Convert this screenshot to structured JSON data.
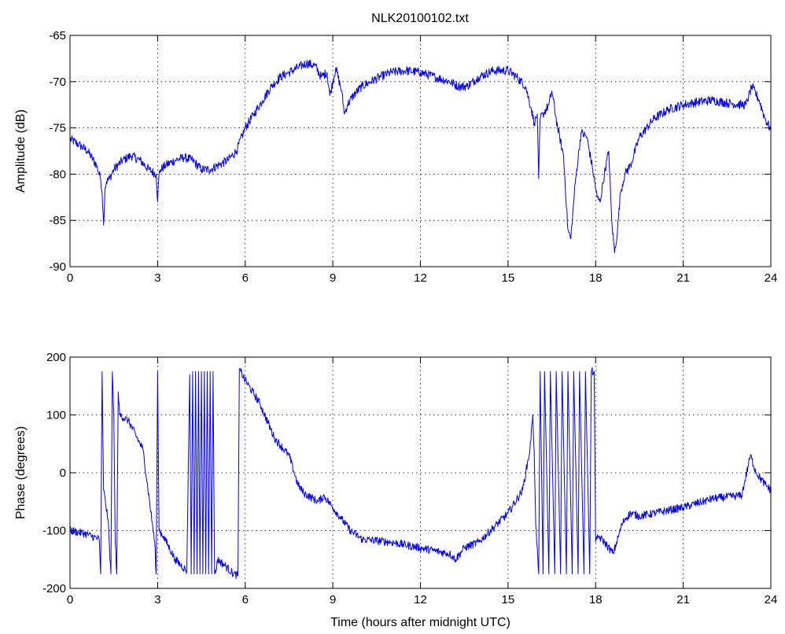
{
  "figure": {
    "title": "NLK20100102.txt",
    "series_color": "#0000ff"
  },
  "chart_data": [
    {
      "type": "line",
      "title": "NLK20100102.txt",
      "xlabel": "",
      "ylabel": "Amplitude (dB)",
      "xlim": [
        0,
        24
      ],
      "ylim": [
        -90,
        -65
      ],
      "xticks": [
        0,
        3,
        6,
        9,
        12,
        15,
        18,
        21,
        24
      ],
      "yticks": [
        -90,
        -85,
        -80,
        -75,
        -70,
        -65
      ],
      "grid": true,
      "series": [
        {
          "color": "#0000ff",
          "noise": 0.5,
          "x": [
            0,
            0.3,
            0.6,
            0.9,
            1.05,
            1.1,
            1.15,
            1.2,
            1.25,
            1.35,
            1.5,
            1.8,
            2.1,
            2.4,
            2.7,
            2.95,
            3.0,
            3.05,
            3.1,
            3.3,
            3.6,
            3.9,
            4.2,
            4.5,
            4.8,
            5.1,
            5.4,
            5.7,
            6.0,
            6.3,
            6.6,
            6.9,
            7.2,
            7.5,
            7.8,
            8.1,
            8.4,
            8.6,
            8.8,
            8.9,
            9.1,
            9.3,
            9.4,
            9.5,
            9.7,
            10.0,
            10.3,
            10.6,
            11.0,
            11.5,
            12.0,
            12.5,
            13.0,
            13.3,
            13.6,
            14.0,
            14.5,
            15.0,
            15.3,
            15.6,
            15.8,
            15.9,
            16.0,
            16.05,
            16.1,
            16.2,
            16.4,
            16.5,
            16.7,
            16.9,
            17.05,
            17.15,
            17.3,
            17.5,
            17.7,
            17.9,
            18.05,
            18.15,
            18.3,
            18.45,
            18.55,
            18.65,
            18.75,
            18.85,
            19.0,
            19.2,
            19.5,
            20.0,
            20.5,
            21.0,
            21.5,
            22.0,
            22.5,
            23.0,
            23.15,
            23.35,
            23.6,
            23.8,
            24.0
          ],
          "values": [
            -76.2,
            -76.8,
            -77.5,
            -79.0,
            -80.5,
            -82.0,
            -85.5,
            -81.5,
            -80.8,
            -80.5,
            -79.5,
            -78.5,
            -78.0,
            -78.5,
            -79.5,
            -80.0,
            -83.0,
            -80.0,
            -79.5,
            -79.0,
            -78.5,
            -78.2,
            -78.5,
            -79.5,
            -79.5,
            -79.0,
            -78.5,
            -77.5,
            -75.0,
            -73.5,
            -72.0,
            -70.5,
            -69.5,
            -69.0,
            -68.5,
            -68.0,
            -68.3,
            -69.5,
            -69.0,
            -71.5,
            -68.5,
            -71.0,
            -73.5,
            -72.5,
            -71.5,
            -70.5,
            -70.0,
            -69.5,
            -69.0,
            -68.8,
            -69.0,
            -69.5,
            -70.0,
            -70.5,
            -70.5,
            -69.5,
            -68.8,
            -68.8,
            -69.5,
            -70.5,
            -73.0,
            -74.5,
            -73.5,
            -80.5,
            -74.0,
            -73.5,
            -72.5,
            -71.0,
            -75.0,
            -78.0,
            -86.0,
            -87.0,
            -81.0,
            -75.5,
            -76.0,
            -79.5,
            -82.5,
            -83.0,
            -80.0,
            -77.5,
            -85.0,
            -88.5,
            -86.0,
            -82.0,
            -80.0,
            -79.0,
            -76.0,
            -74.0,
            -73.0,
            -72.5,
            -72.2,
            -72.0,
            -72.3,
            -72.5,
            -72.5,
            -70.5,
            -72.0,
            -74.0,
            -75.2
          ]
        }
      ]
    },
    {
      "type": "line",
      "title": "",
      "xlabel": "Time (hours after midnight UTC)",
      "ylabel": "Phase (degrees)",
      "xlim": [
        0,
        24
      ],
      "ylim": [
        -200,
        200
      ],
      "xticks": [
        0,
        3,
        6,
        9,
        12,
        15,
        18,
        21,
        24
      ],
      "yticks": [
        -200,
        -100,
        0,
        100,
        200
      ],
      "grid": true,
      "series": [
        {
          "color": "#0000ff",
          "noise": 7,
          "x": [
            0,
            0.5,
            1.0,
            1.05,
            1.1,
            1.15,
            1.3,
            1.4,
            1.45,
            1.5,
            1.55,
            1.6,
            1.65,
            1.7,
            2.0,
            2.5,
            2.9,
            2.95,
            3.0,
            3.05,
            3.2,
            3.6,
            4.0,
            4.1,
            4.15,
            4.2,
            4.25,
            4.3,
            4.35,
            4.4,
            4.45,
            4.5,
            4.55,
            4.6,
            4.65,
            4.7,
            4.75,
            4.8,
            4.85,
            4.9,
            4.95,
            5.0,
            5.05,
            5.3,
            5.6,
            5.75,
            5.8,
            5.85,
            6.0,
            6.5,
            7.0,
            7.5,
            7.8,
            8.0,
            8.5,
            8.7,
            9.0,
            9.3,
            9.6,
            10.0,
            11.0,
            12.0,
            12.5,
            13.0,
            13.2,
            13.5,
            14.0,
            14.5,
            15.0,
            15.5,
            15.75,
            15.85,
            15.9,
            15.95,
            16.05,
            16.1,
            16.2,
            16.25,
            16.4,
            16.45,
            16.6,
            16.65,
            16.8,
            16.85,
            17.0,
            17.05,
            17.2,
            17.25,
            17.4,
            17.45,
            17.6,
            17.65,
            17.8,
            17.85,
            17.95,
            18.0,
            18.05,
            18.1,
            18.3,
            18.6,
            18.9,
            19.0,
            19.2,
            19.5,
            20.0,
            21.0,
            22.0,
            22.8,
            23.0,
            23.3,
            23.5,
            23.8,
            24.0
          ],
          "values": [
            -100,
            -105,
            -115,
            -175,
            175,
            -30,
            -80,
            -175,
            175,
            100,
            -120,
            -175,
            140,
            100,
            90,
            40,
            -120,
            -175,
            175,
            -100,
            -110,
            -150,
            -170,
            170,
            -175,
            175,
            -175,
            175,
            -175,
            175,
            -175,
            175,
            -175,
            175,
            -175,
            175,
            -175,
            175,
            -175,
            175,
            -175,
            -170,
            -150,
            -160,
            -175,
            -178,
            178,
            175,
            160,
            120,
            60,
            30,
            -20,
            -35,
            -50,
            -40,
            -60,
            -80,
            -100,
            -115,
            -120,
            -130,
            -135,
            -140,
            -150,
            -130,
            -120,
            -95,
            -70,
            -30,
            40,
            100,
            30,
            -90,
            -175,
            175,
            -175,
            175,
            -175,
            175,
            -175,
            175,
            -175,
            175,
            -175,
            175,
            -175,
            175,
            -175,
            175,
            -175,
            175,
            -175,
            175,
            175,
            -120,
            -115,
            -110,
            -120,
            -140,
            -90,
            -80,
            -70,
            -75,
            -70,
            -60,
            -45,
            -40,
            -40,
            30,
            0,
            -20,
            -30
          ]
        }
      ]
    }
  ]
}
